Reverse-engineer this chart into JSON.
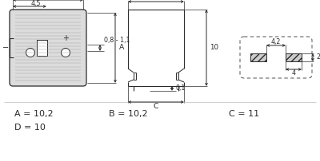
{
  "bg_color": "#ffffff",
  "line_color": "#2a2a2a",
  "dim_color": "#2a2a2a",
  "text_A": "A = 10,2",
  "text_B": "B = 10,2",
  "text_C": "C = 11",
  "text_D": "D = 10",
  "label_fontsize": 8.0,
  "dim_fontsize": 6.2,
  "fig_width": 4.0,
  "fig_height": 2.02,
  "dpi": 100
}
